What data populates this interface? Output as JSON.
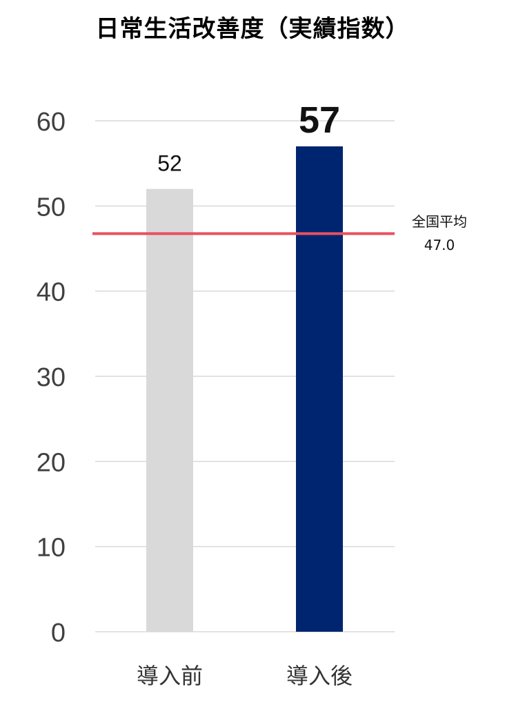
{
  "chart_data": {
    "type": "bar",
    "title": "日常生活改善度（実績指数）",
    "categories": [
      "導入前",
      "導入後"
    ],
    "values": [
      52,
      57
    ],
    "colors": [
      "#d9d9d9",
      "#002570"
    ],
    "ylim": [
      0,
      60
    ],
    "yticks": [
      0,
      10,
      20,
      30,
      40,
      50,
      60
    ],
    "grid": true,
    "xlabel": "",
    "ylabel": "",
    "reference_line": {
      "label": "全国平均",
      "value": 47.0,
      "value_label": "47.0",
      "color": "#e8515e"
    }
  }
}
